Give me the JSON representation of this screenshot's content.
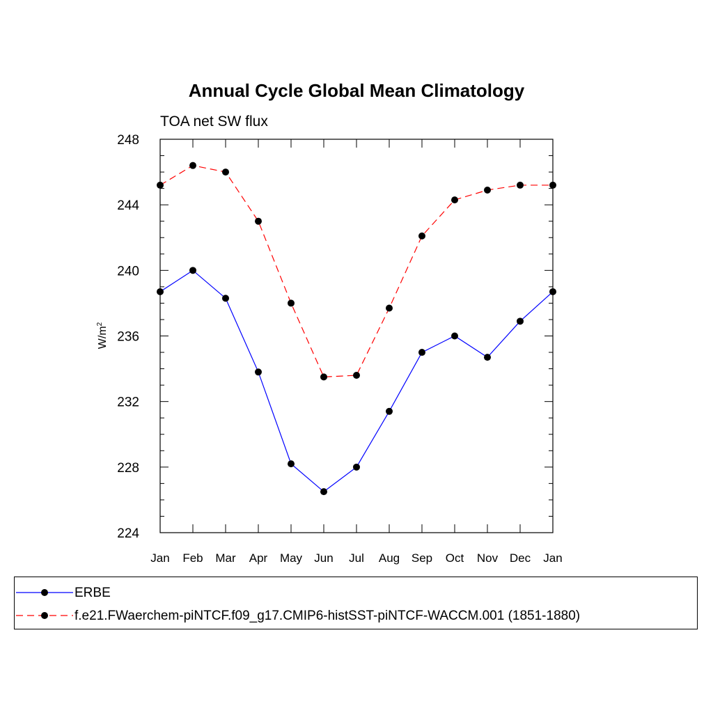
{
  "chart_data": {
    "type": "line",
    "title": "Annual Cycle Global Mean Climatology",
    "subtitle": "TOA net SW flux",
    "ylabel_base": "W/m",
    "ylabel_sup": "2",
    "ylim": [
      224,
      248
    ],
    "yticks": [
      "224",
      "228",
      "232",
      "236",
      "240",
      "244",
      "248"
    ],
    "categories": [
      "Jan",
      "Feb",
      "Mar",
      "Apr",
      "May",
      "Jun",
      "Jul",
      "Aug",
      "Sep",
      "Oct",
      "Nov",
      "Dec",
      "Jan"
    ],
    "series": [
      {
        "name": "ERBE",
        "color": "#0000ff",
        "dashed": false,
        "values": [
          238.7,
          240.0,
          238.3,
          233.8,
          228.2,
          226.5,
          228.0,
          231.4,
          235.0,
          236.0,
          234.7,
          236.9,
          238.7
        ]
      },
      {
        "name": "f.e21.FWaerchem-piNTCF.f09_g17.CMIP6-histSST-piNTCF-WACCM.001 (1851-1880)",
        "color": "#ff0000",
        "dashed": true,
        "values": [
          245.2,
          246.4,
          246.0,
          243.0,
          238.0,
          233.5,
          233.6,
          237.7,
          242.1,
          244.3,
          244.9,
          245.2,
          245.2
        ]
      }
    ],
    "grid": false,
    "legend_placement": "bottom"
  }
}
